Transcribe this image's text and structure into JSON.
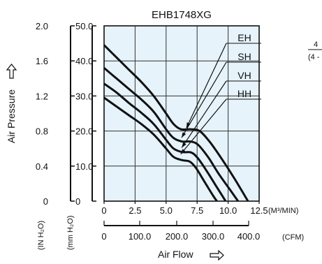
{
  "chart_data": {
    "type": "line",
    "title": "EHB1748XG",
    "x_primary": {
      "unit_label": "(M³/MIN)",
      "ticks": [
        "0",
        "2.5",
        "5.0",
        "7.5",
        "10.0",
        "12.5"
      ],
      "range": [
        0,
        12.5
      ]
    },
    "x_secondary": {
      "unit_label": "(CFM)",
      "ticks": [
        "0",
        "100.0",
        "200.0",
        "300.0",
        "400.0"
      ]
    },
    "xlabel": "Air Flow",
    "ylabel": "Air Pressure",
    "y_primary": {
      "unit_label": "(mm H₂O)",
      "ticks": [
        "0",
        "10.0",
        "20.0",
        "30.0",
        "40.0",
        "50.0"
      ],
      "range": [
        0,
        50
      ]
    },
    "y_secondary": {
      "unit_label": "(IN H₂O)",
      "ticks": [
        "0",
        "0.4",
        "0.8",
        "1.2",
        "1.6",
        "2.0"
      ]
    },
    "grid": true,
    "series": [
      {
        "name": "EH",
        "points": [
          [
            0,
            44.5
          ],
          [
            1,
            41
          ],
          [
            2,
            37.5
          ],
          [
            3,
            34
          ],
          [
            4,
            30
          ],
          [
            5,
            25
          ],
          [
            5.6,
            22
          ],
          [
            6.2,
            20.5
          ],
          [
            7,
            20.5
          ],
          [
            7.7,
            20
          ],
          [
            8.5,
            17
          ],
          [
            9.5,
            12
          ],
          [
            10.5,
            6.5
          ],
          [
            11.6,
            0
          ]
        ]
      },
      {
        "name": "SH",
        "points": [
          [
            0,
            38
          ],
          [
            1,
            35
          ],
          [
            2,
            32
          ],
          [
            3,
            29
          ],
          [
            4,
            25.5
          ],
          [
            5,
            20.5
          ],
          [
            5.6,
            18
          ],
          [
            6.3,
            17
          ],
          [
            7,
            17
          ],
          [
            7.6,
            16
          ],
          [
            8.4,
            12.5
          ],
          [
            9.2,
            8
          ],
          [
            10.2,
            3
          ],
          [
            10.8,
            0
          ]
        ]
      },
      {
        "name": "VH",
        "points": [
          [
            0,
            33.5
          ],
          [
            1,
            31
          ],
          [
            2,
            28
          ],
          [
            3,
            25.2
          ],
          [
            4,
            22
          ],
          [
            5,
            17.5
          ],
          [
            5.6,
            15
          ],
          [
            6.3,
            14
          ],
          [
            7,
            13.9
          ],
          [
            7.5,
            12.5
          ],
          [
            8.2,
            9
          ],
          [
            9,
            4.5
          ],
          [
            9.8,
            0
          ]
        ]
      },
      {
        "name": "HH",
        "points": [
          [
            0,
            29.5
          ],
          [
            1,
            27
          ],
          [
            2,
            24.5
          ],
          [
            3,
            22
          ],
          [
            4,
            19
          ],
          [
            5,
            15
          ],
          [
            5.6,
            12.6
          ],
          [
            6.3,
            11.7
          ],
          [
            6.9,
            11.3
          ],
          [
            7.4,
            9.5
          ],
          [
            8.1,
            5.5
          ],
          [
            8.8,
            1.5
          ],
          [
            9.1,
            0
          ]
        ]
      }
    ],
    "partial_text": [
      "4",
      "(4 -"
    ]
  }
}
